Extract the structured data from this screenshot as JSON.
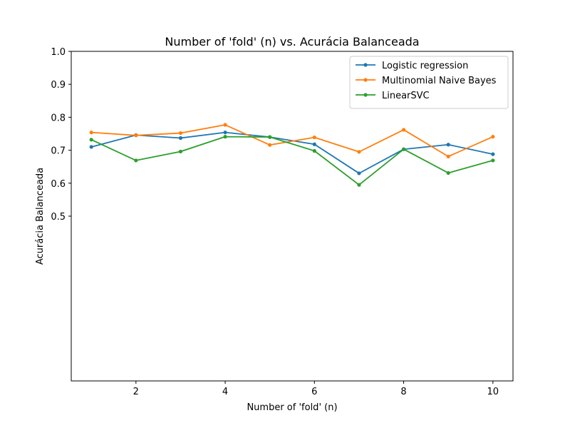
{
  "chart_data": {
    "type": "line",
    "title": "Number of 'fold' (n) vs. Acurácia Balanceada",
    "xlabel": "Number of 'fold' (n)",
    "ylabel": "Acurácia Balanceada",
    "x": [
      1,
      2,
      3,
      4,
      5,
      6,
      7,
      8,
      9,
      10
    ],
    "xlim": [
      0.55,
      10.45
    ],
    "ylim": [
      0.0,
      1.0
    ],
    "xticks": [
      2,
      4,
      6,
      8,
      10
    ],
    "yticks": [
      0.5,
      0.6,
      0.7,
      0.8,
      0.9,
      1.0
    ],
    "ytick_labels": [
      "0.5",
      "0.6",
      "0.7",
      "0.8",
      "0.9",
      "1.0"
    ],
    "grid": false,
    "legend_position": "top-right",
    "series": [
      {
        "name": "Logistic regression",
        "color": "#1f77b4",
        "values": [
          0.71,
          0.746,
          0.737,
          0.754,
          0.74,
          0.718,
          0.63,
          0.703,
          0.717,
          0.688
        ]
      },
      {
        "name": "Multinomial Naive Bayes",
        "color": "#ff7f0e",
        "values": [
          0.754,
          0.745,
          0.752,
          0.777,
          0.716,
          0.739,
          0.695,
          0.762,
          0.681,
          0.741
        ]
      },
      {
        "name": "LinearSVC",
        "color": "#2ca02c",
        "values": [
          0.732,
          0.669,
          0.696,
          0.741,
          0.74,
          0.698,
          0.595,
          0.703,
          0.631,
          0.669
        ]
      }
    ]
  }
}
